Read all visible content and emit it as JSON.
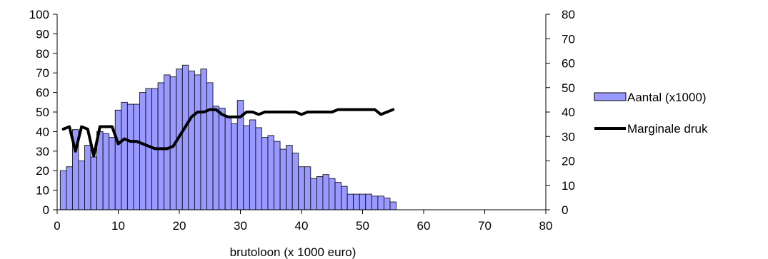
{
  "chart_data": {
    "type": "bar",
    "title": "",
    "xlabel": "brutoloon (x 1000 euro)",
    "ylabel": "",
    "y2label": "",
    "xlim": [
      0,
      80
    ],
    "ylim": [
      0,
      100
    ],
    "y2lim": [
      0,
      80
    ],
    "x_ticks": [
      0,
      10,
      20,
      30,
      40,
      50,
      60,
      70,
      80
    ],
    "y_ticks": [
      0,
      10,
      20,
      30,
      40,
      50,
      60,
      70,
      80,
      90,
      100
    ],
    "y2_ticks": [
      0,
      10,
      20,
      30,
      40,
      50,
      60,
      70,
      80
    ],
    "grid": false,
    "legend_position": "right",
    "colors": {
      "bar_fill": "#9999ff",
      "bar_stroke": "#000000",
      "line": "#000000"
    },
    "series": [
      {
        "name": "Aantal (x1000)",
        "type": "bar",
        "axis": "left",
        "x": [
          1,
          2,
          3,
          4,
          5,
          6,
          7,
          8,
          9,
          10,
          11,
          12,
          13,
          14,
          15,
          16,
          17,
          18,
          19,
          20,
          21,
          22,
          23,
          24,
          25,
          26,
          27,
          28,
          29,
          30,
          31,
          32,
          33,
          34,
          35,
          36,
          37,
          38,
          39,
          40,
          41,
          42,
          43,
          44,
          45,
          46,
          47,
          48,
          49,
          50,
          51,
          52,
          53,
          54,
          55
        ],
        "values": [
          20,
          22,
          41,
          25,
          33,
          27,
          40,
          39,
          37,
          51,
          55,
          54,
          54,
          60,
          62,
          62,
          65,
          69,
          68,
          72,
          74,
          71,
          69,
          72,
          65,
          53,
          52,
          48,
          44,
          56,
          43,
          46,
          42,
          37,
          38,
          35,
          31,
          33,
          29,
          22,
          22,
          16,
          17,
          18,
          16,
          14,
          12,
          8,
          8,
          8,
          8,
          7,
          7,
          6,
          4
        ]
      },
      {
        "name": "Marginale druk",
        "type": "line",
        "axis": "right",
        "x": [
          1,
          2,
          3,
          4,
          5,
          6,
          7,
          8,
          9,
          10,
          11,
          12,
          13,
          14,
          15,
          16,
          17,
          18,
          19,
          20,
          21,
          22,
          23,
          24,
          25,
          26,
          27,
          28,
          29,
          30,
          31,
          32,
          33,
          34,
          35,
          36,
          37,
          38,
          39,
          40,
          41,
          42,
          43,
          44,
          45,
          46,
          47,
          48,
          49,
          50,
          51,
          52,
          53,
          54,
          55
        ],
        "values": [
          33,
          34,
          24,
          34,
          33,
          22,
          34,
          34,
          34,
          27,
          29,
          28,
          28,
          27,
          26,
          25,
          25,
          25,
          26,
          30,
          34,
          38,
          40,
          40,
          41,
          41,
          39,
          38,
          38,
          38,
          40,
          40,
          39,
          40,
          40,
          40,
          40,
          40,
          40,
          39,
          40,
          40,
          40,
          40,
          40,
          41,
          41,
          41,
          41,
          41,
          41,
          41,
          39,
          40,
          41
        ]
      }
    ]
  }
}
